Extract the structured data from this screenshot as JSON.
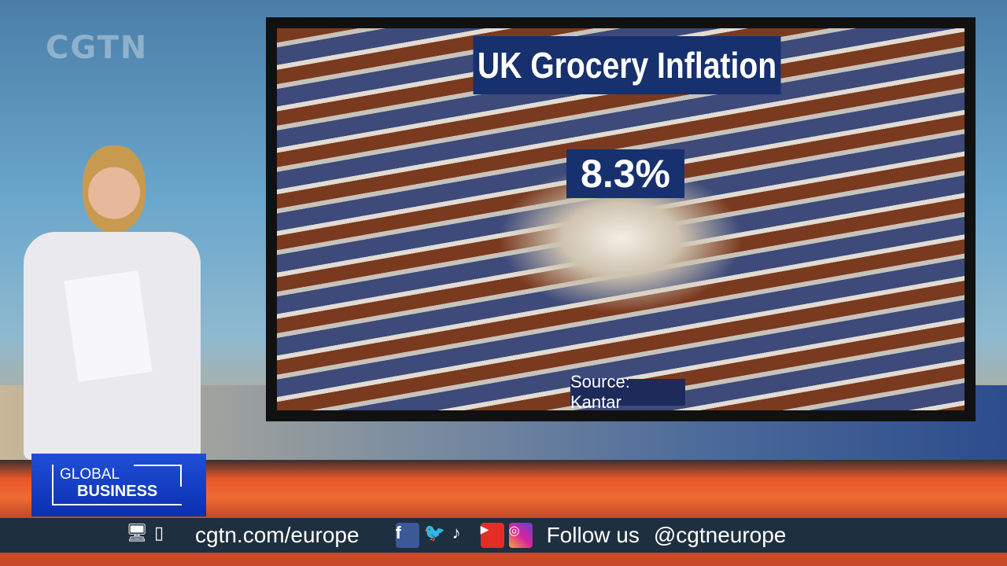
{
  "channel_logo": "CGTN",
  "graphic": {
    "title": "UK Grocery Inflation",
    "value": "8.3%",
    "source": "Source: Kantar"
  },
  "program": {
    "line1": "GLOBAL",
    "line2": "BUSINESS"
  },
  "ticker": {
    "website": "cgtn.com/europe",
    "follow_label": "Follow us",
    "handle": "@cgtneurope",
    "icons": [
      "desktop-icon",
      "mobile-icon",
      "facebook-icon",
      "twitter-icon",
      "tiktok-icon",
      "youtube-icon",
      "instagram-icon"
    ]
  },
  "colors": {
    "graphic_bg": "#17306e",
    "program_bg": "#1f4fd8",
    "ticker_bg": "#1e2f3f"
  }
}
